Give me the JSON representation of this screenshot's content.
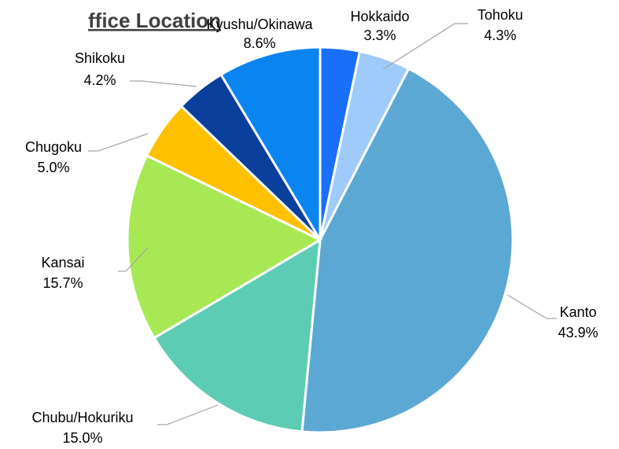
{
  "chart_data": {
    "type": "pie",
    "title": "ffice Location",
    "categories": [
      "Hokkaido",
      "Tohoku",
      "Kanto",
      "Chubu/Hokuriku",
      "Kansai",
      "Chugoku",
      "Shikoku",
      "Kyushu/Okinawa"
    ],
    "values": [
      3.3,
      4.3,
      43.9,
      15.0,
      15.7,
      5.0,
      4.2,
      8.6
    ],
    "value_labels": [
      "3.3%",
      "4.3%",
      "43.9%",
      "15.0%",
      "15.7%",
      "5.0%",
      "4.2%",
      "8.6%"
    ],
    "colors": [
      "#1a6ffa",
      "#9ecbfa",
      "#5ba8d4",
      "#5ccdb4",
      "#a8e855",
      "#ffc000",
      "#0a3f9c",
      "#0a84f0"
    ]
  }
}
